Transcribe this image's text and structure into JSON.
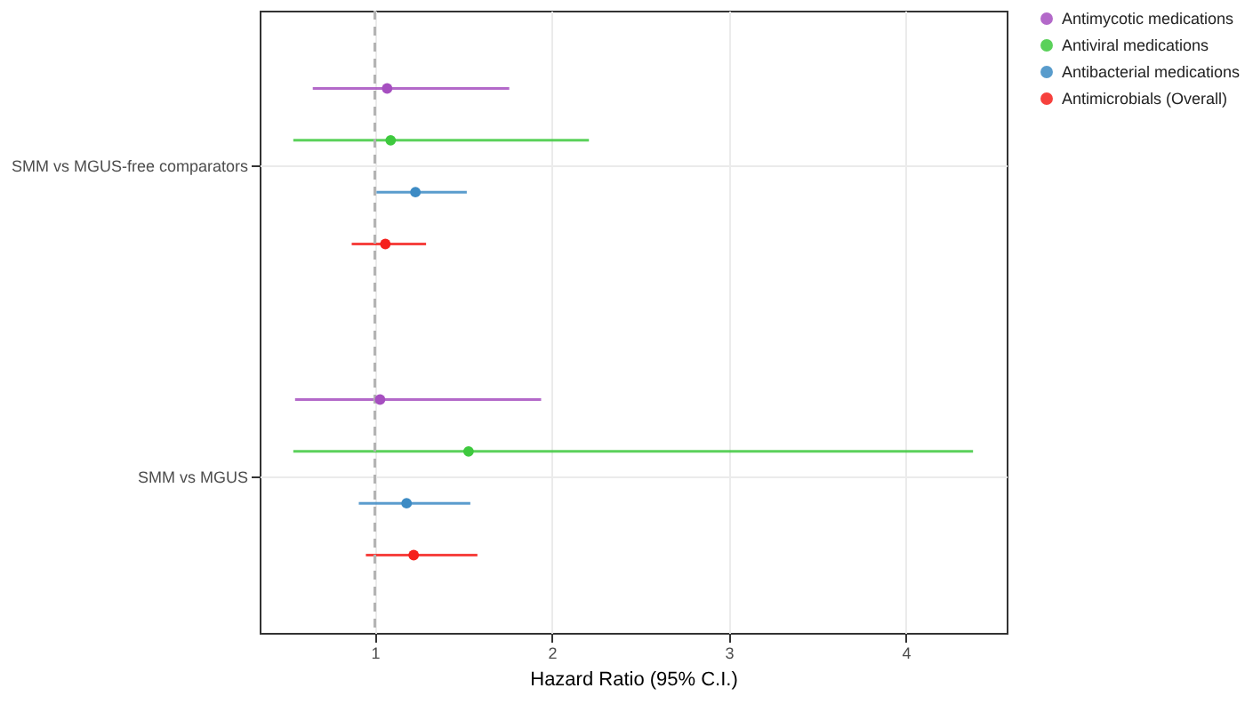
{
  "chart_data": {
    "type": "scatter",
    "orientation": "horizontal",
    "xlabel": "Hazard Ratio (95% C.I.)",
    "categories": [
      "SMM vs MGUS-free comparators",
      "SMM vs MGUS"
    ],
    "series": [
      {
        "name": "Antimycotic medications",
        "color": "#a64fc0",
        "values": [
          1.07,
          1.03
        ],
        "errors": [
          [
            0.65,
            1.76
          ],
          [
            0.55,
            1.94
          ]
        ]
      },
      {
        "name": "Antiviral medications",
        "color": "#3ec93e",
        "values": [
          1.09,
          1.53
        ],
        "errors": [
          [
            0.54,
            2.21
          ],
          [
            0.54,
            4.38
          ]
        ]
      },
      {
        "name": "Antibacterial medications",
        "color": "#3d8bc4",
        "values": [
          1.23,
          1.18
        ],
        "errors": [
          [
            1.01,
            1.52
          ],
          [
            0.91,
            1.54
          ]
        ]
      },
      {
        "name": "Antimicrobials (Overall)",
        "color": "#f5201c",
        "values": [
          1.06,
          1.22
        ],
        "errors": [
          [
            0.87,
            1.29
          ],
          [
            0.95,
            1.58
          ]
        ]
      }
    ],
    "xlim": [
      0.35,
      4.57
    ],
    "xticks": [
      1,
      2,
      3,
      4
    ],
    "ref_lines": [
      {
        "axis": "x",
        "value": 1,
        "color": "#b3b3b3",
        "line_style": "dashed"
      }
    ],
    "grid": true,
    "legend": "right",
    "marker": "circle"
  }
}
